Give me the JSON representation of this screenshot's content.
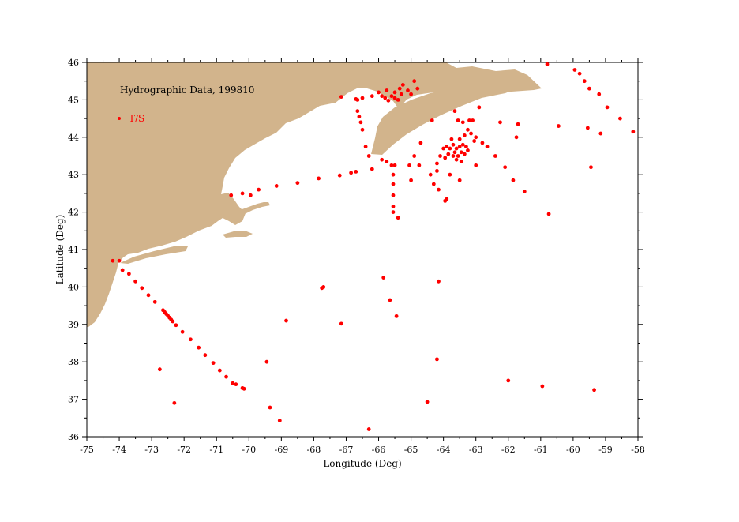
{
  "chart_data": {
    "type": "scatter",
    "title": "Hydrographic Data, 199810",
    "xlabel": "Longitude (Deg)",
    "ylabel": "Latitude (Deg)",
    "xlim": [
      -75,
      -58
    ],
    "ylim": [
      36,
      46
    ],
    "x_ticks": [
      "-75",
      "-74",
      "-73",
      "-72",
      "-71",
      "-70",
      "-69",
      "-68",
      "-67",
      "-66",
      "-65",
      "-64",
      "-63",
      "-62",
      "-61",
      "-60",
      "-59",
      "-58"
    ],
    "y_ticks": [
      "36",
      "37",
      "38",
      "39",
      "40",
      "41",
      "42",
      "43",
      "44",
      "45",
      "46"
    ],
    "grid": false,
    "legend_position": "top-left",
    "colors": {
      "land": "#D2B48C",
      "points": "#FF0000",
      "frame": "#000000"
    },
    "series": [
      {
        "name": "T/S",
        "color": "#FF0000",
        "points": [
          [
            -74.2,
            40.7
          ],
          [
            -74.0,
            40.7
          ],
          [
            -73.9,
            40.45
          ],
          [
            -73.7,
            40.35
          ],
          [
            -73.5,
            40.15
          ],
          [
            -73.3,
            39.97
          ],
          [
            -73.1,
            39.78
          ],
          [
            -72.9,
            39.6
          ],
          [
            -72.65,
            39.38
          ],
          [
            -72.6,
            39.33
          ],
          [
            -72.55,
            39.28
          ],
          [
            -72.5,
            39.23
          ],
          [
            -72.45,
            39.18
          ],
          [
            -72.4,
            39.13
          ],
          [
            -72.35,
            39.08
          ],
          [
            -72.25,
            38.98
          ],
          [
            -72.05,
            38.8
          ],
          [
            -71.8,
            38.6
          ],
          [
            -71.55,
            38.38
          ],
          [
            -71.35,
            38.18
          ],
          [
            -71.1,
            37.97
          ],
          [
            -70.9,
            37.77
          ],
          [
            -70.7,
            37.6
          ],
          [
            -70.5,
            37.43
          ],
          [
            -70.4,
            37.4
          ],
          [
            -70.2,
            37.3
          ],
          [
            -70.15,
            37.28
          ],
          [
            -72.75,
            37.8
          ],
          [
            -72.3,
            36.9
          ],
          [
            -69.45,
            38.0
          ],
          [
            -69.35,
            36.78
          ],
          [
            -69.05,
            36.43
          ],
          [
            -68.85,
            39.1
          ],
          [
            -67.75,
            39.97
          ],
          [
            -67.7,
            40.0
          ],
          [
            -67.15,
            39.02
          ],
          [
            -66.3,
            36.2
          ],
          [
            -65.85,
            40.25
          ],
          [
            -65.65,
            39.65
          ],
          [
            -65.45,
            39.22
          ],
          [
            -64.5,
            36.93
          ],
          [
            -64.2,
            38.07
          ],
          [
            -64.15,
            40.15
          ],
          [
            -62.0,
            37.5
          ],
          [
            -60.95,
            37.35
          ],
          [
            -59.35,
            37.25
          ],
          [
            -60.75,
            41.95
          ],
          [
            -70.55,
            42.45
          ],
          [
            -70.2,
            42.5
          ],
          [
            -69.95,
            42.45
          ],
          [
            -69.7,
            42.6
          ],
          [
            -69.15,
            42.7
          ],
          [
            -68.5,
            42.78
          ],
          [
            -67.85,
            42.9
          ],
          [
            -67.2,
            42.98
          ],
          [
            -66.85,
            43.05
          ],
          [
            -66.7,
            43.08
          ],
          [
            -66.2,
            43.15
          ],
          [
            -66.3,
            43.5
          ],
          [
            -66.4,
            43.75
          ],
          [
            -66.5,
            44.2
          ],
          [
            -66.55,
            44.4
          ],
          [
            -66.6,
            44.55
          ],
          [
            -66.65,
            44.7
          ],
          [
            -66.65,
            45.0
          ],
          [
            -66.7,
            45.02
          ],
          [
            -66.0,
            45.2
          ],
          [
            -65.9,
            45.1
          ],
          [
            -65.8,
            45.05
          ],
          [
            -65.7,
            44.98
          ],
          [
            -65.6,
            45.1
          ],
          [
            -65.5,
            45.2
          ],
          [
            -65.35,
            45.3
          ],
          [
            -65.25,
            45.4
          ],
          [
            -65.1,
            45.25
          ],
          [
            -65.0,
            45.15
          ],
          [
            -64.9,
            45.5
          ],
          [
            -64.8,
            45.3
          ],
          [
            -65.5,
            45.05
          ],
          [
            -65.3,
            45.15
          ],
          [
            -65.75,
            45.25
          ],
          [
            -65.4,
            45.0
          ],
          [
            -66.2,
            45.1
          ],
          [
            -66.5,
            45.05
          ],
          [
            -67.15,
            45.08
          ],
          [
            -65.9,
            43.4
          ],
          [
            -65.75,
            43.35
          ],
          [
            -65.6,
            43.25
          ],
          [
            -65.55,
            43.0
          ],
          [
            -65.55,
            42.75
          ],
          [
            -65.55,
            42.45
          ],
          [
            -65.55,
            42.15
          ],
          [
            -65.55,
            42.0
          ],
          [
            -65.4,
            41.85
          ],
          [
            -65.5,
            43.25
          ],
          [
            -65.05,
            43.25
          ],
          [
            -64.9,
            43.5
          ],
          [
            -64.7,
            43.85
          ],
          [
            -65.0,
            42.85
          ],
          [
            -64.75,
            43.25
          ],
          [
            -64.4,
            43.0
          ],
          [
            -64.3,
            42.75
          ],
          [
            -64.15,
            42.6
          ],
          [
            -63.9,
            42.35
          ],
          [
            -63.95,
            42.3
          ],
          [
            -64.2,
            43.1
          ],
          [
            -64.35,
            44.45
          ],
          [
            -63.9,
            43.75
          ],
          [
            -63.8,
            43.7
          ],
          [
            -63.7,
            43.8
          ],
          [
            -63.65,
            43.6
          ],
          [
            -63.6,
            43.7
          ],
          [
            -63.55,
            43.5
          ],
          [
            -63.5,
            43.75
          ],
          [
            -63.45,
            43.6
          ],
          [
            -63.4,
            43.8
          ],
          [
            -63.35,
            43.55
          ],
          [
            -63.3,
            43.75
          ],
          [
            -63.25,
            43.65
          ],
          [
            -63.6,
            43.4
          ],
          [
            -63.45,
            43.35
          ],
          [
            -63.7,
            43.5
          ],
          [
            -63.95,
            43.45
          ],
          [
            -64.0,
            43.7
          ],
          [
            -63.85,
            43.55
          ],
          [
            -63.75,
            43.95
          ],
          [
            -63.5,
            43.95
          ],
          [
            -63.35,
            44.05
          ],
          [
            -63.25,
            44.2
          ],
          [
            -63.15,
            44.1
          ],
          [
            -63.05,
            43.9
          ],
          [
            -63.4,
            44.4
          ],
          [
            -63.55,
            44.45
          ],
          [
            -63.2,
            44.45
          ],
          [
            -63.1,
            44.45
          ],
          [
            -63.65,
            44.7
          ],
          [
            -62.9,
            44.8
          ],
          [
            -63.0,
            44.0
          ],
          [
            -64.1,
            43.5
          ],
          [
            -64.2,
            43.3
          ],
          [
            -63.8,
            43.0
          ],
          [
            -63.5,
            42.85
          ],
          [
            -63.0,
            43.25
          ],
          [
            -62.8,
            43.85
          ],
          [
            -62.65,
            43.75
          ],
          [
            -62.4,
            43.5
          ],
          [
            -62.1,
            43.2
          ],
          [
            -61.85,
            42.85
          ],
          [
            -61.5,
            42.55
          ],
          [
            -62.25,
            44.4
          ],
          [
            -61.7,
            44.35
          ],
          [
            -61.75,
            44.0
          ],
          [
            -60.45,
            44.3
          ],
          [
            -59.95,
            45.8
          ],
          [
            -59.8,
            45.7
          ],
          [
            -59.65,
            45.5
          ],
          [
            -59.5,
            45.3
          ],
          [
            -59.55,
            44.25
          ],
          [
            -59.2,
            45.15
          ],
          [
            -58.95,
            44.8
          ],
          [
            -58.55,
            44.5
          ],
          [
            -58.15,
            44.15
          ],
          [
            -59.15,
            44.1
          ],
          [
            -59.45,
            43.2
          ],
          [
            -60.8,
            45.95
          ]
        ]
      }
    ]
  }
}
